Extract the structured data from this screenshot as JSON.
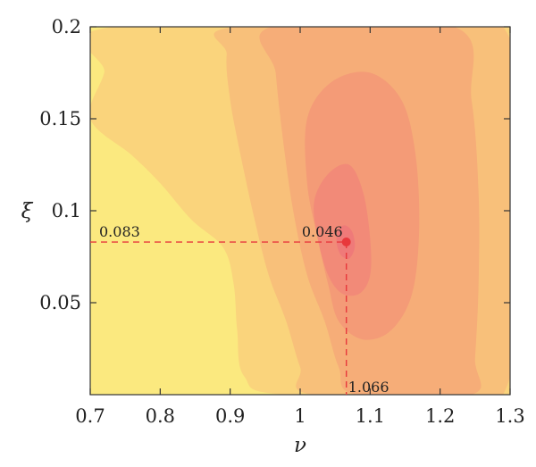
{
  "chart_data": {
    "type": "contour",
    "title": "",
    "xlabel": "ν",
    "ylabel": "ξ",
    "xlim": [
      0.7,
      1.3
    ],
    "ylim": [
      0.0,
      0.2
    ],
    "x_ticks": [
      {
        "value": 0.7,
        "label": "0.7"
      },
      {
        "value": 0.8,
        "label": "0.8"
      },
      {
        "value": 0.9,
        "label": "0.9"
      },
      {
        "value": 1.0,
        "label": "1"
      },
      {
        "value": 1.1,
        "label": "1.1"
      },
      {
        "value": 1.2,
        "label": "1.2"
      },
      {
        "value": 1.3,
        "label": "1.3"
      }
    ],
    "y_ticks": [
      {
        "value": 0.05,
        "label": "0.05"
      },
      {
        "value": 0.1,
        "label": "0.1"
      },
      {
        "value": 0.15,
        "label": "0.15"
      },
      {
        "value": 0.2,
        "label": "0.2"
      }
    ],
    "minimum": {
      "x": 1.066,
      "y": 0.083,
      "value": 0.046,
      "color": "#e8383c"
    },
    "annotations": {
      "x_text": "1.066",
      "y_text": "0.083",
      "value_text": "0.046"
    },
    "guide_color": "#e8383c",
    "contour_levels": [
      {
        "level": 1,
        "color": "#fbe97f",
        "points": [
          [
            0.7,
            0.0
          ],
          [
            1.3,
            0.0
          ],
          [
            1.3,
            0.2
          ],
          [
            0.7,
            0.2
          ]
        ]
      },
      {
        "level": 2,
        "color": "#fad47c",
        "points": [
          [
            0.7,
            0.15
          ],
          [
            0.72,
            0.175
          ],
          [
            0.735,
            0.2
          ],
          [
            1.3,
            0.2
          ],
          [
            1.3,
            0.0
          ],
          [
            0.98,
            0.0
          ],
          [
            0.92,
            0.01
          ],
          [
            0.91,
            0.035
          ],
          [
            0.905,
            0.06
          ],
          [
            0.89,
            0.08
          ],
          [
            0.845,
            0.095
          ],
          [
            0.8,
            0.115
          ],
          [
            0.76,
            0.13
          ]
        ]
      },
      {
        "level": 3,
        "color": "#f8c07a",
        "points": [
          [
            0.91,
            0.2
          ],
          [
            1.29,
            0.2
          ],
          [
            1.29,
            0.0
          ],
          [
            1.02,
            0.0
          ],
          [
            1.0,
            0.015
          ],
          [
            0.98,
            0.04
          ],
          [
            0.955,
            0.065
          ],
          [
            0.935,
            0.095
          ],
          [
            0.915,
            0.13
          ],
          [
            0.9,
            0.16
          ],
          [
            0.895,
            0.185
          ]
        ]
      },
      {
        "level": 4,
        "color": "#f6ad78",
        "points": [
          [
            0.96,
            0.2
          ],
          [
            1.22,
            0.2
          ],
          [
            1.245,
            0.16
          ],
          [
            1.255,
            0.11
          ],
          [
            1.255,
            0.06
          ],
          [
            1.25,
            0.02
          ],
          [
            1.245,
            0.0
          ],
          [
            1.08,
            0.0
          ],
          [
            1.055,
            0.015
          ],
          [
            1.035,
            0.04
          ],
          [
            1.01,
            0.065
          ],
          [
            0.99,
            0.1
          ],
          [
            0.975,
            0.14
          ],
          [
            0.965,
            0.175
          ]
        ]
      },
      {
        "level": 5,
        "color": "#f49b77",
        "points": [
          [
            1.01,
            0.15
          ],
          [
            1.045,
            0.17
          ],
          [
            1.1,
            0.175
          ],
          [
            1.145,
            0.16
          ],
          [
            1.165,
            0.13
          ],
          [
            1.17,
            0.09
          ],
          [
            1.16,
            0.055
          ],
          [
            1.13,
            0.035
          ],
          [
            1.09,
            0.03
          ],
          [
            1.055,
            0.04
          ],
          [
            1.04,
            0.06
          ],
          [
            1.025,
            0.085
          ],
          [
            1.01,
            0.115
          ]
        ]
      },
      {
        "level": 6,
        "color": "#f28a78",
        "points": [
          [
            1.02,
            0.105
          ],
          [
            1.04,
            0.12
          ],
          [
            1.07,
            0.125
          ],
          [
            1.09,
            0.11
          ],
          [
            1.1,
            0.085
          ],
          [
            1.1,
            0.065
          ],
          [
            1.085,
            0.055
          ],
          [
            1.06,
            0.055
          ],
          [
            1.04,
            0.065
          ],
          [
            1.025,
            0.085
          ]
        ]
      },
      {
        "level": 7,
        "color": "#ef7a79",
        "points": [
          [
            1.055,
            0.09
          ],
          [
            1.065,
            0.092
          ],
          [
            1.075,
            0.088
          ],
          [
            1.078,
            0.08
          ],
          [
            1.07,
            0.074
          ],
          [
            1.058,
            0.076
          ],
          [
            1.052,
            0.083
          ]
        ]
      }
    ]
  }
}
